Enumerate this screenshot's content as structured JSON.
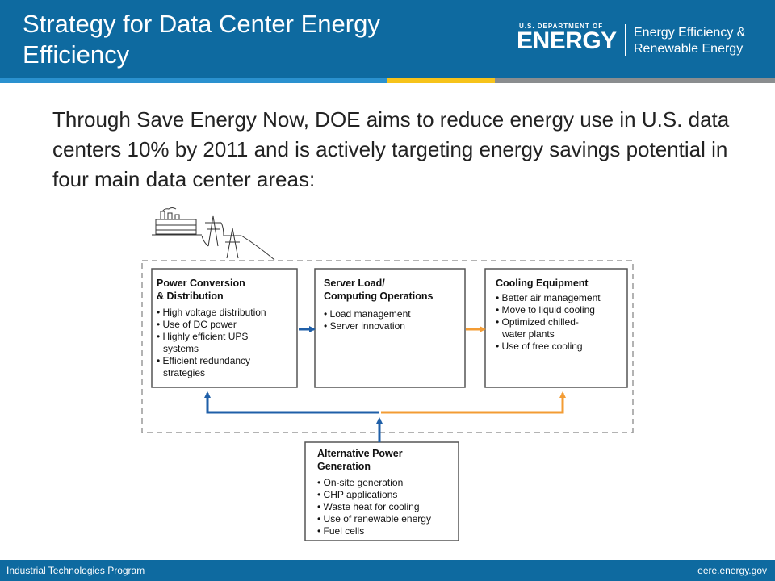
{
  "header": {
    "title": "Strategy for Data Center Energy Efficiency",
    "logo": {
      "small_text": "U.S. DEPARTMENT OF",
      "big_text": "ENERGY",
      "line1": "Energy Efficiency &",
      "line2": "Renewable Energy"
    }
  },
  "body": {
    "intro": "Through Save Energy Now, DOE aims to reduce energy use in U.S. data centers 10% by 2011 and is actively targeting energy savings potential in four main data center areas:"
  },
  "diagram": {
    "colors": {
      "blue_arrow": "#1f5fa8",
      "orange_arrow": "#f39c34",
      "box_border": "#555555",
      "dashed_border": "#9a9a9a"
    },
    "icons": [
      "power-plant-icon",
      "transmission-tower-icon"
    ],
    "power": {
      "title1": "Power Conversion",
      "title2": "& Distribution",
      "items": [
        "• High voltage distribution",
        "• Use of DC power",
        "• Highly efficient UPS",
        "  systems",
        "• Efficient redundancy",
        "  strategies"
      ]
    },
    "server": {
      "title1": "Server Load/",
      "title2": "Computing Operations",
      "items": [
        "• Load management",
        "• Server innovation"
      ]
    },
    "cooling": {
      "title1": "Cooling Equipment",
      "items": [
        "• Better air management",
        "• Move to liquid cooling",
        "• Optimized chilled-",
        "  water plants",
        "• Use of free cooling"
      ]
    },
    "alternative": {
      "title1": "Alternative Power",
      "title2": "Generation",
      "items": [
        "• On-site generation",
        "• CHP applications",
        "• Waste heat for cooling",
        "• Use of renewable energy",
        "• Fuel cells"
      ]
    }
  },
  "footer": {
    "left": "Industrial Technologies Program",
    "right": "eere.energy.gov"
  }
}
